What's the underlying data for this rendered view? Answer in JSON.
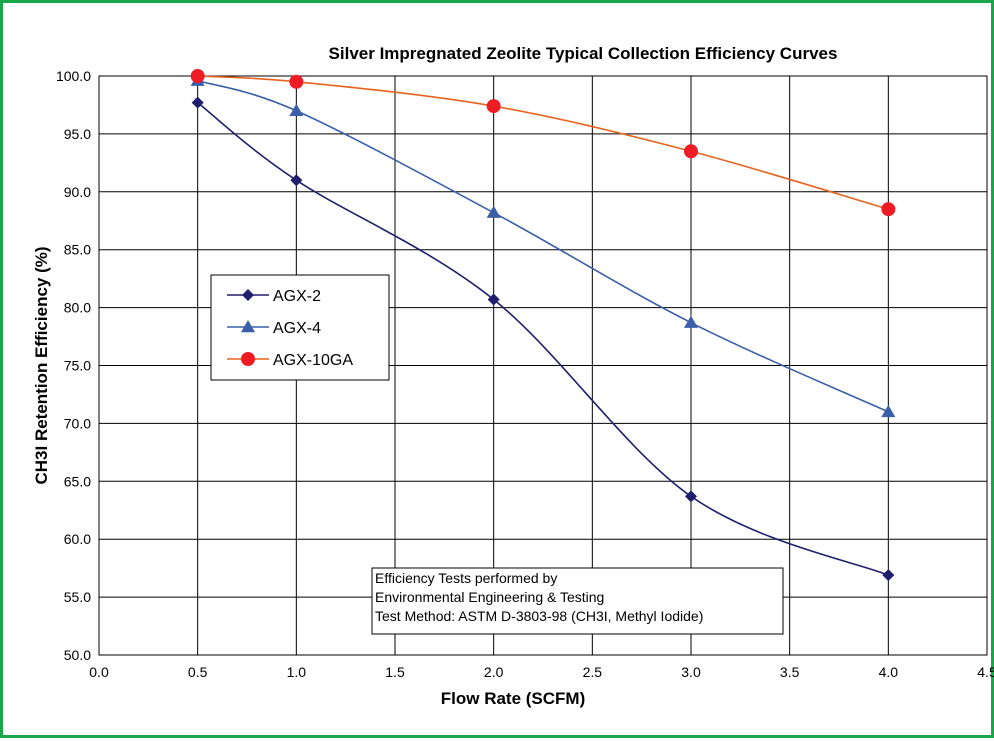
{
  "chart_data": {
    "type": "line",
    "title": "Silver Impregnated Zeolite Typical Collection Efficiency Curves",
    "xlabel": "Flow Rate (SCFM)",
    "ylabel": "CH3I Retention Efficiency (%)",
    "xlim": [
      0,
      4.5
    ],
    "ylim": [
      50,
      100
    ],
    "xticks": [
      "0.0",
      "0.5",
      "1.0",
      "1.5",
      "2.0",
      "2.5",
      "3.0",
      "3.5",
      "4.0",
      "4.5"
    ],
    "yticks": [
      "50.0",
      "55.0",
      "60.0",
      "65.0",
      "70.0",
      "75.0",
      "80.0",
      "85.0",
      "90.0",
      "95.0",
      "100.0"
    ],
    "grid": true,
    "legend_position": "left",
    "series": [
      {
        "name": "AGX-2",
        "color": "#1f1f6e",
        "marker": "diamond",
        "x": [
          0.5,
          1.0,
          2.0,
          3.0,
          4.0
        ],
        "y": [
          97.7,
          91.0,
          80.7,
          63.7,
          56.9
        ]
      },
      {
        "name": "AGX-4",
        "color": "#3a5fa8",
        "marker": "triangle",
        "x": [
          0.5,
          1.0,
          2.0,
          3.0,
          4.0
        ],
        "y": [
          99.6,
          97.0,
          88.2,
          78.7,
          71.0
        ]
      },
      {
        "name": "AGX-10GA",
        "color": "#e8641e",
        "marker_color": "#ee1c24",
        "marker": "circle",
        "x": [
          0.5,
          1.0,
          2.0,
          3.0,
          4.0
        ],
        "y": [
          100.0,
          99.5,
          97.4,
          93.5,
          88.5
        ]
      }
    ],
    "annotation": [
      "Efficiency Tests performed by",
      "Environmental Engineering & Testing",
      "Test Method: ASTM D-3803-98 (CH3I, Methyl Iodide)"
    ]
  }
}
